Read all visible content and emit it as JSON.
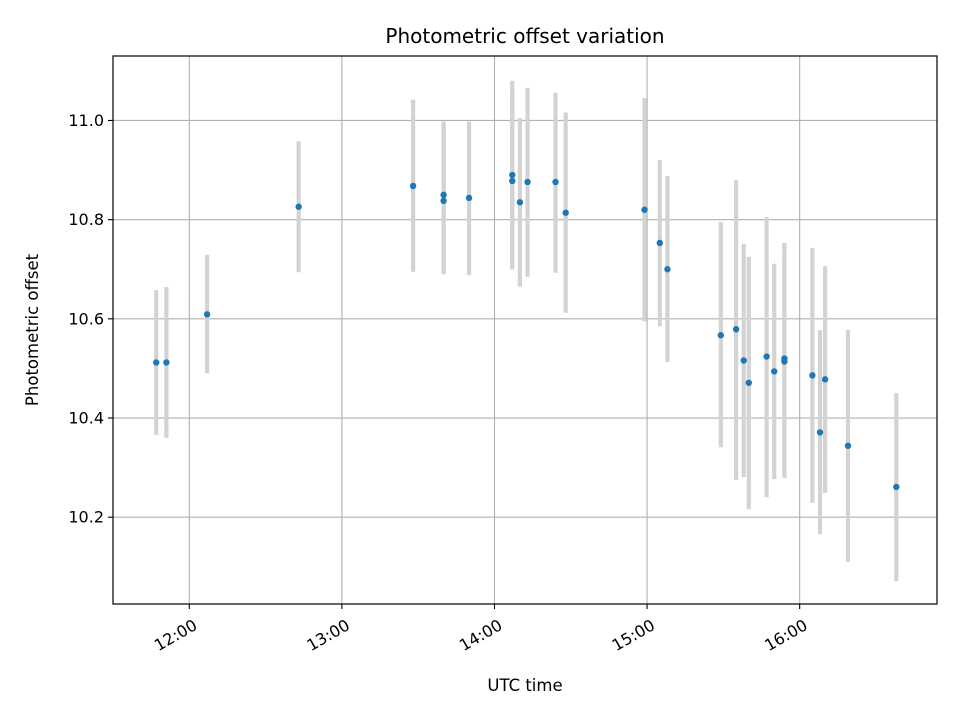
{
  "chart_data": {
    "type": "scatter",
    "title": "Photometric offset variation",
    "xlabel": "UTC time",
    "ylabel": "Photometric offset",
    "x_tick_labels": [
      "12:00",
      "13:00",
      "14:00",
      "15:00",
      "16:00"
    ],
    "y_tick_labels": [
      "10.2",
      "10.4",
      "10.6",
      "10.8",
      "11.0"
    ],
    "xlim": [
      "11:30",
      "16:54"
    ],
    "ylim": [
      10.025,
      11.13
    ],
    "grid": true,
    "colors": {
      "point": "#1f77b4",
      "errorbar": "#d3d3d3",
      "grid": "#b0b0b0"
    },
    "series": [
      {
        "points": [
          {
            "x": "11:47",
            "y": 10.512,
            "ylow": 10.366,
            "yhigh": 10.658
          },
          {
            "x": "11:51",
            "y": 10.512,
            "ylow": 10.36,
            "yhigh": 10.664
          },
          {
            "x": "12:07",
            "y": 10.609,
            "ylow": 10.49,
            "yhigh": 10.729
          },
          {
            "x": "12:43",
            "y": 10.826,
            "ylow": 10.694,
            "yhigh": 10.958
          },
          {
            "x": "13:28",
            "y": 10.868,
            "ylow": 10.695,
            "yhigh": 11.042
          },
          {
            "x": "13:40",
            "y": 10.85,
            "ylow": 10.693,
            "yhigh": 10.998
          },
          {
            "x": "13:40",
            "y": 10.838,
            "ylow": 10.69,
            "yhigh": 10.986
          },
          {
            "x": "13:50",
            "y": 10.844,
            "ylow": 10.688,
            "yhigh": 10.998
          },
          {
            "x": "14:07",
            "y": 10.89,
            "ylow": 10.7,
            "yhigh": 11.08
          },
          {
            "x": "14:07",
            "y": 10.878,
            "ylow": 10.7,
            "yhigh": 11.058
          },
          {
            "x": "14:10",
            "y": 10.835,
            "ylow": 10.665,
            "yhigh": 11.005
          },
          {
            "x": "14:13",
            "y": 10.876,
            "ylow": 10.685,
            "yhigh": 11.066
          },
          {
            "x": "14:24",
            "y": 10.876,
            "ylow": 10.693,
            "yhigh": 11.056
          },
          {
            "x": "14:28",
            "y": 10.814,
            "ylow": 10.612,
            "yhigh": 11.016
          },
          {
            "x": "14:59",
            "y": 10.82,
            "ylow": 10.595,
            "yhigh": 11.045
          },
          {
            "x": "15:05",
            "y": 10.753,
            "ylow": 10.585,
            "yhigh": 10.92
          },
          {
            "x": "15:08",
            "y": 10.7,
            "ylow": 10.513,
            "yhigh": 10.888
          },
          {
            "x": "15:29",
            "y": 10.567,
            "ylow": 10.341,
            "yhigh": 10.795
          },
          {
            "x": "15:35",
            "y": 10.579,
            "ylow": 10.275,
            "yhigh": 10.88
          },
          {
            "x": "15:38",
            "y": 10.516,
            "ylow": 10.281,
            "yhigh": 10.751
          },
          {
            "x": "15:40",
            "y": 10.471,
            "ylow": 10.216,
            "yhigh": 10.725
          },
          {
            "x": "15:47",
            "y": 10.524,
            "ylow": 10.24,
            "yhigh": 10.805
          },
          {
            "x": "15:50",
            "y": 10.494,
            "ylow": 10.277,
            "yhigh": 10.711
          },
          {
            "x": "15:54",
            "y": 10.52,
            "ylow": 10.284,
            "yhigh": 10.753
          },
          {
            "x": "15:54",
            "y": 10.514,
            "ylow": 10.279,
            "yhigh": 10.749
          },
          {
            "x": "16:05",
            "y": 10.486,
            "ylow": 10.229,
            "yhigh": 10.743
          },
          {
            "x": "16:08",
            "y": 10.371,
            "ylow": 10.166,
            "yhigh": 10.577
          },
          {
            "x": "16:10",
            "y": 10.478,
            "ylow": 10.249,
            "yhigh": 10.706
          },
          {
            "x": "16:19",
            "y": 10.344,
            "ylow": 10.11,
            "yhigh": 10.578
          },
          {
            "x": "16:38",
            "y": 10.261,
            "ylow": 10.071,
            "yhigh": 10.45
          }
        ]
      }
    ]
  }
}
